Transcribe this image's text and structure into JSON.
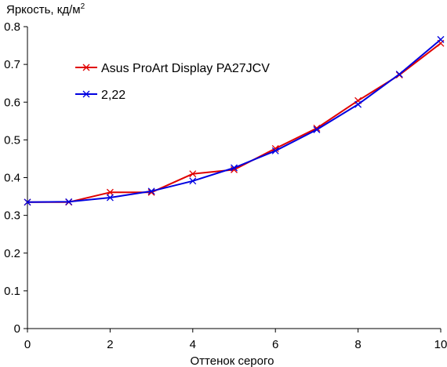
{
  "chart_data": {
    "type": "line",
    "ylabel": "Яркость, кд/м",
    "ylabel_superscript": "2",
    "xlabel": "Оттенок серого",
    "xlim": [
      0,
      10
    ],
    "ylim": [
      0,
      0.8
    ],
    "x_ticks": [
      0,
      2,
      4,
      6,
      8,
      10
    ],
    "x_tick_labels": [
      "0",
      "2",
      "4",
      "6",
      "8",
      "10"
    ],
    "y_ticks": [
      0,
      0.1,
      0.2,
      0.3,
      0.4,
      0.5,
      0.6,
      0.7,
      0.8
    ],
    "y_tick_labels": [
      "0",
      "0.1",
      "0.2",
      "0.3",
      "0.4",
      "0.5",
      "0.6",
      "0.7",
      "0.8"
    ],
    "grid": false,
    "legend_position": "top-left",
    "series": [
      {
        "name": "Asus ProArt Display PA27JCV",
        "color": "#e00000",
        "marker": "x",
        "x": [
          0,
          1,
          2,
          3,
          4,
          5,
          6,
          7,
          8,
          9,
          10
        ],
        "y": [
          0.335,
          0.335,
          0.361,
          0.361,
          0.41,
          0.421,
          0.477,
          0.531,
          0.604,
          0.672,
          0.756
        ]
      },
      {
        "name": "2,22",
        "color": "#0000e0",
        "marker": "x",
        "x": [
          0,
          1,
          2,
          3,
          4,
          5,
          6,
          7,
          8,
          9,
          10
        ],
        "y": [
          0.335,
          0.336,
          0.347,
          0.364,
          0.391,
          0.426,
          0.471,
          0.527,
          0.594,
          0.674,
          0.766
        ]
      }
    ]
  }
}
